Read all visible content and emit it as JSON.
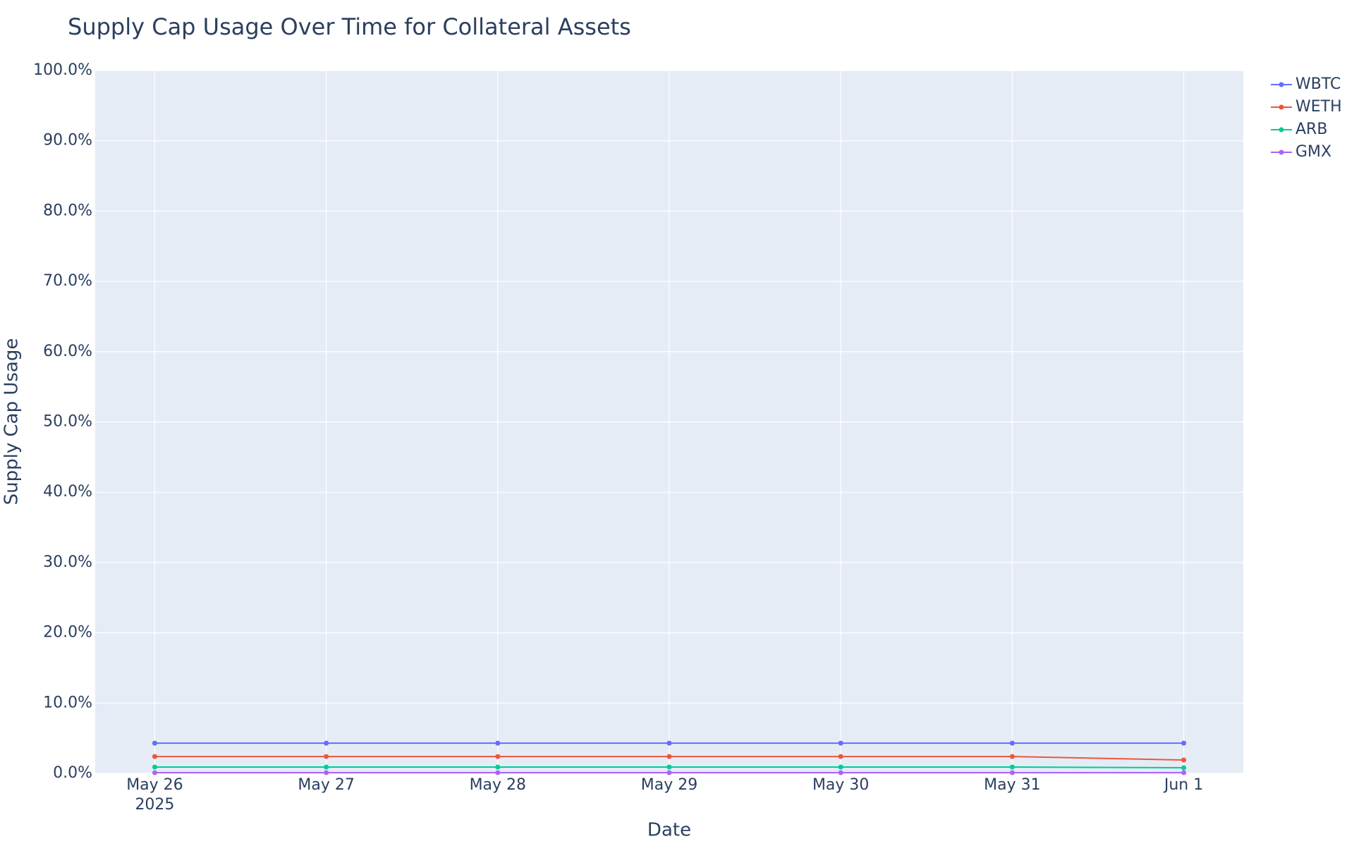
{
  "chart_data": {
    "type": "line",
    "title": "Supply Cap Usage Over Time for Collateral Assets",
    "xlabel": "Date",
    "ylabel": "Supply Cap Usage",
    "x": [
      "2025-05-26T00:00",
      "2025-05-27T00:00",
      "2025-05-28T00:00",
      "2025-05-29T00:00",
      "2025-05-30T00:00",
      "2025-05-31T00:00",
      "2025-06-01T00:00"
    ],
    "series": [
      {
        "name": "WBTC",
        "color": "#636efa",
        "values": [
          4.3,
          4.3,
          4.3,
          4.3,
          4.3,
          4.3,
          4.3
        ]
      },
      {
        "name": "WETH",
        "color": "#ef553b",
        "values": [
          2.4,
          2.4,
          2.4,
          2.4,
          2.4,
          2.4,
          1.9
        ]
      },
      {
        "name": "ARB",
        "color": "#00cc96",
        "values": [
          0.9,
          0.9,
          0.9,
          0.9,
          0.9,
          0.9,
          0.8
        ]
      },
      {
        "name": "GMX",
        "color": "#ab63fa",
        "values": [
          0.1,
          0.1,
          0.1,
          0.1,
          0.1,
          0.1,
          0.1
        ]
      }
    ],
    "xlim": [
      "2025-05-25T15:40",
      "2025-06-01T08:20"
    ],
    "xticks": [
      {
        "value": "2025-05-26T00:00",
        "label": "May 26"
      },
      {
        "value": "2025-05-27T00:00",
        "label": "May 27"
      },
      {
        "value": "2025-05-28T00:00",
        "label": "May 28"
      },
      {
        "value": "2025-05-29T00:00",
        "label": "May 29"
      },
      {
        "value": "2025-05-30T00:00",
        "label": "May 30"
      },
      {
        "value": "2025-05-31T00:00",
        "label": "May 31"
      },
      {
        "value": "2025-06-01T00:00",
        "label": "Jun 1"
      }
    ],
    "x_year_label": "2025",
    "ylim": [
      0,
      100
    ],
    "yticks": [
      {
        "value": 0,
        "label": "0.0%"
      },
      {
        "value": 10,
        "label": "10.0%"
      },
      {
        "value": 20,
        "label": "20.0%"
      },
      {
        "value": 30,
        "label": "30.0%"
      },
      {
        "value": 40,
        "label": "40.0%"
      },
      {
        "value": 50,
        "label": "50.0%"
      },
      {
        "value": 60,
        "label": "60.0%"
      },
      {
        "value": 70,
        "label": "70.0%"
      },
      {
        "value": 80,
        "label": "80.0%"
      },
      {
        "value": 90,
        "label": "90.0%"
      },
      {
        "value": 100,
        "label": "100.0%"
      }
    ],
    "grid": true,
    "legend": "top-right outside"
  }
}
